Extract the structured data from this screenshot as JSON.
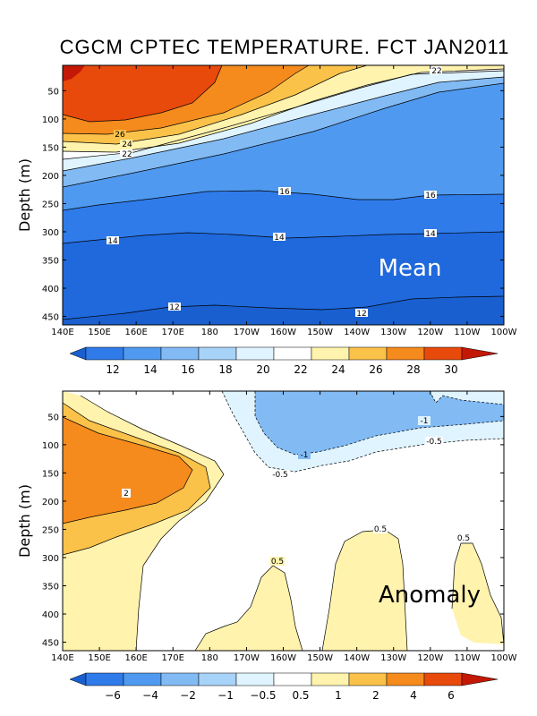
{
  "title": "CGCM CPTEC TEMPERATURE. FCT JAN2011",
  "chart_data": [
    {
      "type": "contour",
      "panel_label": "Mean",
      "xlabel": "",
      "ylabel": "Depth (m)",
      "x_tick_labels": [
        "140E",
        "150E",
        "160E",
        "170E",
        "180",
        "170W",
        "160W",
        "150W",
        "140W",
        "130W",
        "120W",
        "110W",
        "100W"
      ],
      "y_tick_labels": [
        "50",
        "100",
        "150",
        "200",
        "250",
        "300",
        "350",
        "400",
        "450"
      ],
      "ylim": [
        465,
        5
      ],
      "colorbar": {
        "levels": [
          "12",
          "14",
          "16",
          "18",
          "20",
          "22",
          "24",
          "26",
          "28",
          "30"
        ],
        "colors": [
          "#1a5fcf",
          "#2f7bea",
          "#4f9af0",
          "#82baf4",
          "#a8d3f8",
          "#dff4ff",
          "#ffffff",
          "#fff3ad",
          "#fbc24a",
          "#f58a1d",
          "#e84a0c",
          "#c41807"
        ]
      },
      "contour_labels": [
        "22",
        "26",
        "24",
        "22",
        "16",
        "16",
        "14",
        "14",
        "14",
        "12",
        "12"
      ]
    },
    {
      "type": "contour",
      "panel_label": "Anomaly",
      "xlabel": "",
      "ylabel": "Depth (m)",
      "x_tick_labels": [
        "140E",
        "150E",
        "160E",
        "170E",
        "180",
        "170W",
        "160W",
        "150W",
        "140W",
        "130W",
        "120W",
        "110W",
        "100W"
      ],
      "y_tick_labels": [
        "50",
        "100",
        "150",
        "200",
        "250",
        "300",
        "350",
        "400",
        "450"
      ],
      "ylim": [
        465,
        5
      ],
      "colorbar": {
        "levels": [
          "−6",
          "−4",
          "−2",
          "−1",
          "−0.5",
          "0.5",
          "1",
          "2",
          "4",
          "6"
        ],
        "colors": [
          "#1a5fcf",
          "#2f7bea",
          "#4f9af0",
          "#82baf4",
          "#a8d3f8",
          "#dff4ff",
          "#ffffff",
          "#fff3ad",
          "#fbc24a",
          "#f58a1d",
          "#e84a0c",
          "#c41807"
        ]
      },
      "contour_labels": [
        "-1",
        "-1",
        "-0.5",
        "-0.5",
        "2",
        "0.5",
        "0.5",
        "0.5"
      ]
    }
  ]
}
